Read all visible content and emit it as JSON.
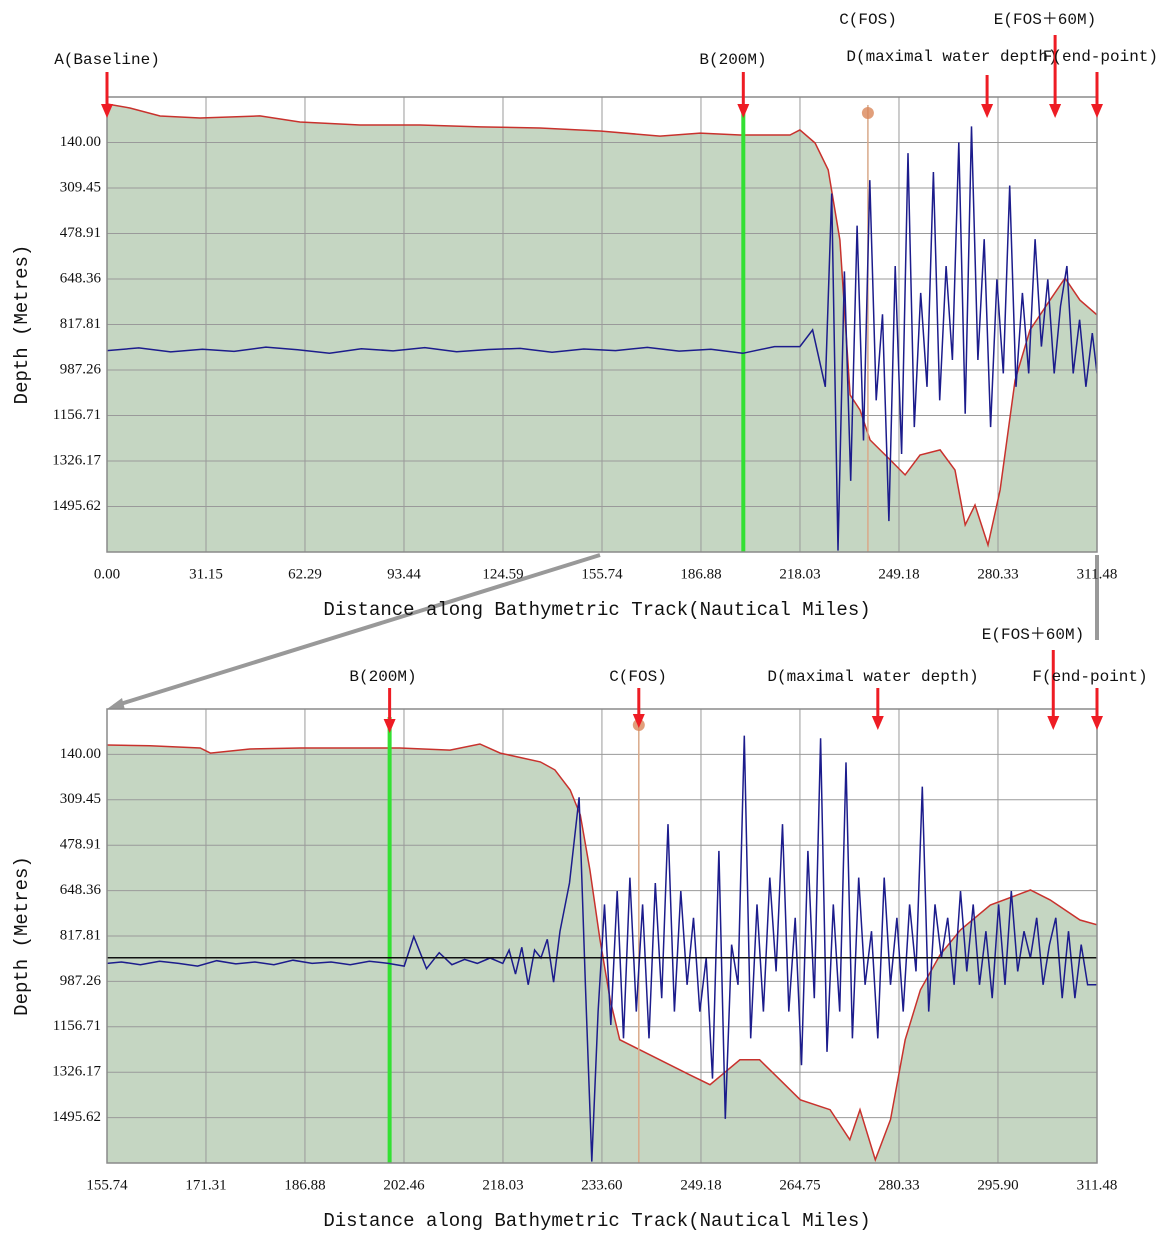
{
  "chart_data": [
    {
      "type": "line",
      "xlabel": "Distance along Bathymetric Track(Nautical Miles)",
      "ylabel": "Depth (Metres)",
      "xlim": [
        0,
        311.48
      ],
      "xticks": [
        {
          "value": 0,
          "label": "0.00"
        },
        31.15,
        62.29,
        93.44,
        124.59,
        155.74,
        186.88,
        218.03,
        249.18,
        280.33,
        311.48
      ],
      "ylim": [
        -29.45,
        1665.07
      ],
      "y_reversed": true,
      "yticks": [
        {
          "value": 140,
          "label": "140.00"
        },
        309.45,
        478.91,
        648.36,
        817.81,
        987.26,
        1156.71,
        1326.17,
        1495.62
      ],
      "grid": true,
      "series": [
        {
          "color": "#c8322d",
          "fill": "#c5d6c2",
          "x": [
            0,
            7.2,
            16.7,
            29.3,
            48.1,
            60.7,
            79.6,
            98.5,
            117.4,
            136.2,
            155.1,
            174,
            186.6,
            199.2,
            214.9,
            218,
            222.8,
            226.9,
            230.6,
            233.8,
            236.9,
            240.1,
            246.4,
            251.1,
            255.8,
            262.1,
            266.8,
            270,
            273.1,
            277.2,
            281,
            285.7,
            290.4,
            296.7,
            301.4,
            306.1,
            311.48
          ],
          "values": [
            -3.4,
            11.5,
            41.3,
            48.8,
            41,
            63.7,
            75,
            75,
            82,
            86,
            97,
            116,
            105,
            112,
            112,
            93,
            142,
            242,
            503,
            1080,
            1136,
            1248,
            1322,
            1378,
            1304,
            1285,
            1360,
            1564,
            1490,
            1639,
            1434,
            1025,
            838,
            727,
            645,
            727,
            782
          ]
        },
        {
          "color": "#1c1c8c",
          "x": [
            0,
            10,
            20,
            30,
            40,
            50,
            60,
            70,
            80,
            90,
            100,
            110,
            120,
            130,
            140,
            150,
            160,
            170,
            180,
            190,
            200,
            210,
            218,
            222,
            226,
            228,
            230,
            232,
            234,
            236,
            238,
            240,
            242,
            244,
            246,
            248,
            250,
            252,
            254,
            256,
            258,
            260,
            262,
            264,
            266,
            268,
            270,
            272,
            274,
            276,
            278,
            280,
            282,
            284,
            286,
            288,
            290,
            292,
            294,
            296,
            298,
            300,
            302,
            304,
            306,
            308,
            310,
            311.48
          ],
          "values": [
            915,
            905,
            920,
            910,
            918,
            902,
            912,
            925,
            908,
            916,
            904,
            919,
            911,
            907,
            921,
            909,
            915,
            903,
            917,
            910,
            925,
            900,
            900,
            838,
            1050,
            330,
            1660,
            620,
            1400,
            450,
            1250,
            280,
            1100,
            780,
            1550,
            600,
            1300,
            180,
            1200,
            700,
            1050,
            250,
            1100,
            600,
            950,
            140,
            1150,
            80,
            950,
            500,
            1200,
            650,
            1000,
            300,
            1050,
            700,
            1000,
            500,
            900,
            650,
            1000,
            750,
            600,
            1000,
            800,
            1050,
            850,
            1000
          ]
        }
      ],
      "vlines": [
        {
          "x": 200.2,
          "color": "#33e033"
        },
        {
          "x": 239.4,
          "color": "#d9a98a"
        }
      ],
      "annotations": [
        {
          "text": "A(Baseline)",
          "x": 0
        },
        {
          "text": "B(200M)",
          "x": 200.2
        },
        {
          "text": "C(FOS)",
          "x": 239.4
        },
        {
          "text": "D(maximal water depth)",
          "x": 276.9
        },
        {
          "text": "E(FOS＋60M)",
          "x": 298.3
        },
        {
          "text": "F(end-point)",
          "x": 311.48
        }
      ]
    },
    {
      "type": "line",
      "xlabel": "Distance along Bathymetric Track(Nautical Miles)",
      "ylabel": "Depth (Metres)",
      "xlim": [
        155.74,
        311.48
      ],
      "xticks": [
        155.74,
        171.31,
        186.88,
        202.46,
        218.03,
        {
          "value": 233.6,
          "label": "233.60"
        },
        249.18,
        264.75,
        280.33,
        {
          "value": 295.9,
          "label": "295.90"
        },
        311.48
      ],
      "ylim": [
        -29.45,
        1665.07
      ],
      "y_reversed": true,
      "yticks": [
        {
          "value": 140,
          "label": "140.00"
        },
        309.45,
        478.91,
        648.36,
        817.81,
        987.26,
        1156.71,
        1326.17,
        1495.62
      ],
      "grid": true,
      "series": [
        {
          "color": "#c8322d",
          "fill": "#c5d6c2",
          "x": [
            155.74,
            162.5,
            170.4,
            172,
            178.2,
            186.1,
            194,
            201.8,
            209.7,
            214.4,
            217.6,
            223.9,
            226.2,
            228.6,
            230.2,
            231.7,
            233.3,
            234.9,
            236.4,
            239.6,
            242.7,
            247.4,
            250.6,
            255.3,
            258.4,
            261.6,
            264.8,
            269.5,
            272.6,
            274.2,
            276.6,
            279,
            281.3,
            283.7,
            286.8,
            290,
            294.7,
            301,
            304.1,
            308.8,
            311.48
          ],
          "values": [
            105,
            108,
            116,
            135,
            120,
            116,
            116,
            116,
            124,
            101,
            135,
            168,
            198,
            273,
            366,
            571,
            832,
            1056,
            1205,
            1243,
            1280,
            1336,
            1373,
            1280,
            1280,
            1354,
            1429,
            1466,
            1578,
            1466,
            1653,
            1503,
            1205,
            1019,
            888,
            795,
            702,
            646,
            683,
            758,
            776
          ]
        },
        {
          "color": "#1c1c8c",
          "x": [
            155.74,
            158,
            161,
            164,
            167,
            170,
            173,
            176,
            179,
            182,
            185,
            188,
            191,
            194,
            197,
            200,
            202.5,
            204,
            206,
            208,
            210,
            212,
            214,
            216,
            218,
            219,
            220,
            221,
            222,
            223,
            224,
            225,
            226,
            227,
            228.5,
            230,
            231,
            232,
            233,
            234,
            235,
            236,
            237,
            238,
            239,
            240,
            241,
            242,
            243,
            244,
            245,
            246,
            247,
            248,
            249,
            250,
            251,
            252,
            253,
            254,
            255,
            256,
            257,
            258,
            259,
            260,
            261,
            262,
            263,
            264,
            265,
            266,
            267,
            268,
            269,
            270,
            271,
            272,
            273,
            274,
            275,
            276,
            277,
            278,
            279,
            280,
            281,
            282,
            283,
            284,
            285,
            286,
            287,
            288,
            289,
            290,
            291,
            292,
            293,
            294,
            295,
            296,
            297,
            298,
            299,
            300,
            301,
            302,
            303,
            304,
            305,
            306,
            307,
            308,
            309,
            310,
            311.48
          ],
          "values": [
            920,
            915,
            925,
            912,
            920,
            930,
            910,
            922,
            915,
            925,
            908,
            920,
            915,
            925,
            912,
            920,
            930,
            820,
            940,
            880,
            925,
            905,
            920,
            900,
            920,
            870,
            960,
            860,
            1000,
            870,
            900,
            830,
            990,
            800,
            620,
            300,
            1000,
            1660,
            1100,
            700,
            1150,
            650,
            1200,
            600,
            1100,
            700,
            1200,
            620,
            1050,
            400,
            1100,
            650,
            1000,
            750,
            1100,
            900,
            1350,
            500,
            1500,
            850,
            1000,
            70,
            1200,
            700,
            1100,
            600,
            950,
            400,
            1100,
            750,
            1300,
            500,
            1050,
            80,
            1250,
            700,
            1100,
            170,
            1200,
            600,
            1000,
            800,
            1200,
            600,
            1000,
            750,
            1100,
            700,
            950,
            260,
            1100,
            700,
            900,
            750,
            1000,
            650,
            950,
            700,
            1000,
            800,
            1050,
            700,
            1000,
            650,
            950,
            800,
            900,
            750,
            1000,
            850,
            750,
            1050,
            800,
            1050,
            850,
            1000,
            1000
          ]
        }
      ],
      "vlines": [
        {
          "x": 200.2,
          "color": "#33e033"
        },
        {
          "x": 239.4,
          "color": "#d9a98a"
        }
      ],
      "hline": {
        "y": 899,
        "color": "#111111"
      },
      "annotations": [
        {
          "text": "B(200M)",
          "x": 200.2
        },
        {
          "text": "C(FOS)",
          "x": 239.4
        },
        {
          "text": "D(maximal water depth)",
          "x": 277
        },
        {
          "text": "E(FOS＋60M)",
          "x": 304.6
        },
        {
          "text": "F(end-point)",
          "x": 311.48
        }
      ]
    }
  ]
}
